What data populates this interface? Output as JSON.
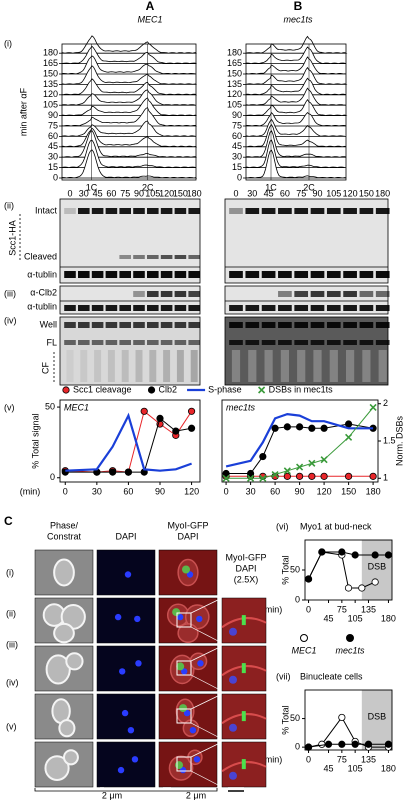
{
  "flow": {
    "label": "(i)",
    "ylabel": "min after αF",
    "ticks": [
      0,
      15,
      30,
      45,
      60,
      75,
      90,
      105,
      120,
      135,
      150,
      165,
      180
    ],
    "peaks": [
      "1C",
      "2C"
    ],
    "panel_a": {
      "letter": "A",
      "title": "MEC1"
    },
    "panel_b": {
      "letter": "B",
      "title": "mec1ts"
    }
  },
  "blots": {
    "lanes": [
      0,
      30,
      45,
      60,
      75,
      90,
      105,
      120,
      150,
      180
    ],
    "ii": {
      "label": "(ii)",
      "protein": "Scc1-HA",
      "bands": [
        "Intact",
        "Cleaved",
        "α-tublin"
      ]
    },
    "iii": {
      "label": "(iii)",
      "bands": [
        "α-Clb2",
        "α-tublin"
      ]
    },
    "iv": {
      "label": "(iv)",
      "bands": [
        "Well",
        "FL",
        "CF"
      ]
    }
  },
  "panel_v_label": "(v)",
  "microscopy": {
    "letter": "C",
    "columns": [
      [
        "Phase/",
        "Constrat"
      ],
      [
        "DAPI"
      ],
      [
        "MyoI-GFP",
        "DAPI"
      ],
      [
        "MyoI-GFP",
        "DAPI",
        "(2.5X)"
      ]
    ],
    "rows": [
      "(i)",
      "(ii)",
      "(iii)",
      "(iv)",
      "(v)"
    ],
    "scale_bars": [
      "2 μm",
      "2 μm"
    ]
  },
  "chart_data": [
    {
      "type": "line",
      "title": "MEC1",
      "ylabel": "% Total signal",
      "xlabel": "(min)",
      "x": [
        0,
        30,
        45,
        60,
        75,
        90,
        105,
        120
      ],
      "xlim": [
        -5,
        128
      ],
      "xticks": [
        0,
        30,
        60,
        90,
        120
      ],
      "ylim": [
        -3,
        55
      ],
      "yticks": [
        0,
        50
      ],
      "series": [
        {
          "color": "#e8262a",
          "marker": "circle",
          "values": [
            5,
            4,
            5,
            4,
            47,
            38,
            30,
            47
          ]
        },
        {
          "color": "#000000",
          "marker": "circle",
          "values": [
            4,
            4,
            4,
            4,
            4,
            42,
            33,
            35
          ]
        },
        {
          "color": "#1a3fd8",
          "values": [
            5,
            6,
            22,
            44,
            6,
            5,
            6,
            10
          ]
        }
      ]
    },
    {
      "type": "line",
      "title": "mec1ts",
      "y2label": "Norm. DSBs",
      "x": [
        0,
        30,
        45,
        60,
        75,
        90,
        105,
        120,
        150,
        180
      ],
      "xlim": [
        -5,
        186
      ],
      "xticks": [
        0,
        30,
        60,
        90,
        120,
        150,
        180
      ],
      "ylim": [
        -3,
        55
      ],
      "y2lim": [
        0.95,
        2.05
      ],
      "y2ticks": [
        1,
        1.5,
        2
      ],
      "series": [
        {
          "name": "Scc1 cleavage",
          "color": "#e8262a",
          "marker": "circle",
          "values": [
            1,
            1,
            1,
            1,
            1,
            1,
            1,
            1,
            1,
            1
          ]
        },
        {
          "name": "Clb2",
          "color": "#000000",
          "marker": "circle",
          "values": [
            3,
            3,
            15,
            35,
            36,
            36,
            35,
            35,
            38,
            35
          ]
        },
        {
          "name": "S-phase",
          "color": "#1a3fd8",
          "values": [
            8,
            12,
            25,
            42,
            45,
            44,
            40,
            40,
            35,
            35
          ]
        },
        {
          "name": "DSBs in mec1ts",
          "color": "#3a9a3a",
          "marker": "x",
          "axis": "y2",
          "values": [
            1,
            1,
            1,
            1.05,
            1.1,
            1.15,
            1.2,
            1.25,
            1.55,
            1.95
          ]
        }
      ]
    },
    {
      "type": "line",
      "label": "(vi)",
      "title": "Myo1 at bud-neck",
      "ylabel": "% Total",
      "xlabel": "(min)",
      "xlim": [
        -8,
        188
      ],
      "xticks": [
        0,
        45,
        75,
        105,
        135,
        180
      ],
      "ylim": [
        0,
        100
      ],
      "yticks": [
        0,
        50
      ],
      "shaded": {
        "label": "DSB",
        "range": [
          120,
          188
        ]
      },
      "series": [
        {
          "name": "MEC1",
          "color": "#000000",
          "marker": "circle",
          "marker_fill": "#ffffff",
          "x": [
            0,
            30,
            75,
            90,
            120,
            150
          ],
          "values": [
            35,
            80,
            75,
            20,
            20,
            30
          ]
        },
        {
          "name": "mec1ts",
          "color": "#000000",
          "marker": "circle",
          "marker_fill": "#000000",
          "x": [
            0,
            30,
            75,
            105,
            150,
            180
          ],
          "values": [
            35,
            80,
            80,
            75,
            75,
            75
          ]
        }
      ]
    },
    {
      "type": "line",
      "label": "(vii)",
      "title": "Binucleate cells",
      "ylabel": "% Total",
      "xlabel": "(min)",
      "xlim": [
        -8,
        188
      ],
      "xticks": [
        0,
        45,
        75,
        105,
        135,
        180
      ],
      "ylim": [
        -5,
        100
      ],
      "yticks": [
        0,
        50
      ],
      "shaded": {
        "label": "DSB",
        "range": [
          120,
          188
        ]
      },
      "series": [
        {
          "color": "#000000",
          "marker": "circle",
          "marker_fill": "#ffffff",
          "x": [
            0,
            30,
            75,
            105,
            135,
            180
          ],
          "values": [
            0,
            5,
            52,
            10,
            0,
            0
          ]
        },
        {
          "color": "#000000",
          "marker": "circle",
          "marker_fill": "#000000",
          "x": [
            0,
            45,
            75,
            105,
            135,
            180
          ],
          "values": [
            0,
            5,
            5,
            5,
            5,
            5
          ]
        }
      ]
    }
  ]
}
